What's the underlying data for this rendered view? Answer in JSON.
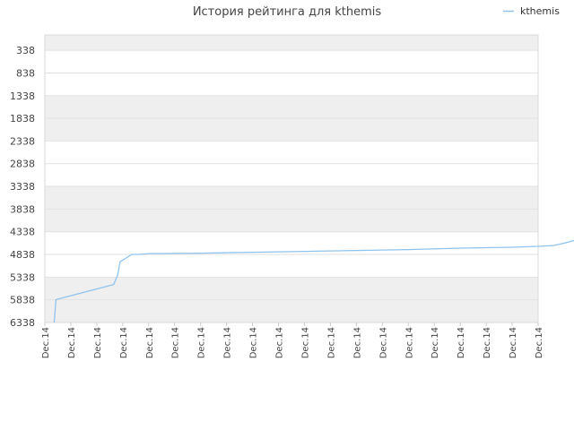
{
  "chart_data": {
    "type": "line",
    "title": "История рейтинга для kthemis",
    "xlabel": "",
    "ylabel": "",
    "y_reversed": true,
    "ylim": [
      6338,
      0
    ],
    "y_ticks": [
      "338",
      "838",
      "1338",
      "1838",
      "2338",
      "2838",
      "3338",
      "3838",
      "4338",
      "4838",
      "5338",
      "5838",
      "6338"
    ],
    "x_ticks": [
      "Dec.14",
      "Dec.14",
      "Dec.14",
      "Dec.14",
      "Dec.14",
      "Dec.14",
      "Dec.14",
      "Dec.14",
      "Dec.14",
      "Dec.14",
      "Dec.14",
      "Dec.14",
      "Dec.14",
      "Dec.14",
      "Dec.14",
      "Dec.14",
      "Dec.14",
      "Dec.14",
      "Dec.14",
      "Dec.14"
    ],
    "grid": true,
    "legend_position": "top-right",
    "series": [
      {
        "name": "kthemis",
        "color": "#8fc3ee",
        "x": [
          0.36,
          0.43,
          0.45,
          2.65,
          2.8,
          2.9,
          3.35,
          3.6,
          4.0,
          6.0,
          8.0,
          10.0,
          12.0,
          14.0,
          16.0,
          18.0,
          19.0,
          19.6,
          20.0,
          20.7,
          21.0,
          21.2,
          21.35,
          21.42
        ],
        "y": [
          6338,
          5838,
          5830,
          5500,
          5300,
          5000,
          4838,
          4838,
          4820,
          4810,
          4790,
          4770,
          4750,
          4730,
          4700,
          4680,
          4660,
          4640,
          4590,
          4480,
          4400,
          4300,
          4200,
          3938
        ]
      }
    ]
  }
}
